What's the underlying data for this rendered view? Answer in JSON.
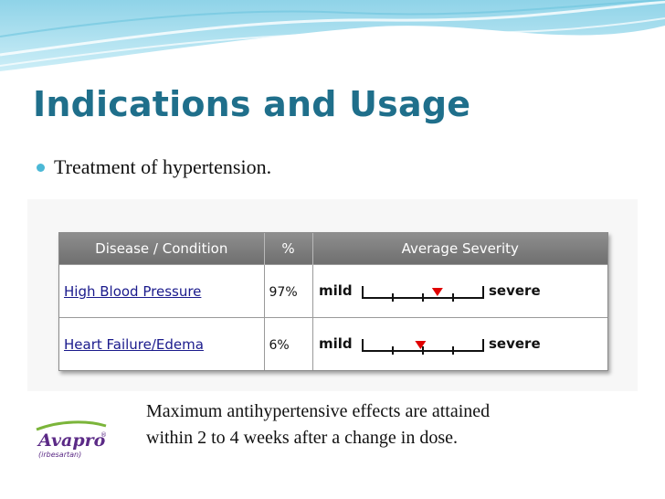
{
  "slide": {
    "title": "Indications and Usage",
    "bullet": "Treatment of hypertension.",
    "note_line1": "Maximum antihypertensive effects are attained",
    "note_line2": "within 2 to 4 weeks after a change in dose."
  },
  "table": {
    "headers": [
      "Disease / Condition",
      "%",
      "Average Severity"
    ],
    "rows": [
      {
        "condition": "High Blood Pressure",
        "percent": "97%",
        "severity_fraction": 0.62
      },
      {
        "condition": "Heart Failure/Edema",
        "percent": "6%",
        "severity_fraction": 0.48
      }
    ],
    "scale_low": "mild",
    "scale_high": "severe"
  },
  "logo": {
    "brand": "Avapro",
    "generic": "(irbesartan)",
    "registered": "®"
  },
  "colors": {
    "title": "#1f6f8b",
    "bullet": "#4bb8d6",
    "marker": "#e00000",
    "logo_green": "#7bb53a",
    "logo_purple": "#5b2a86"
  }
}
